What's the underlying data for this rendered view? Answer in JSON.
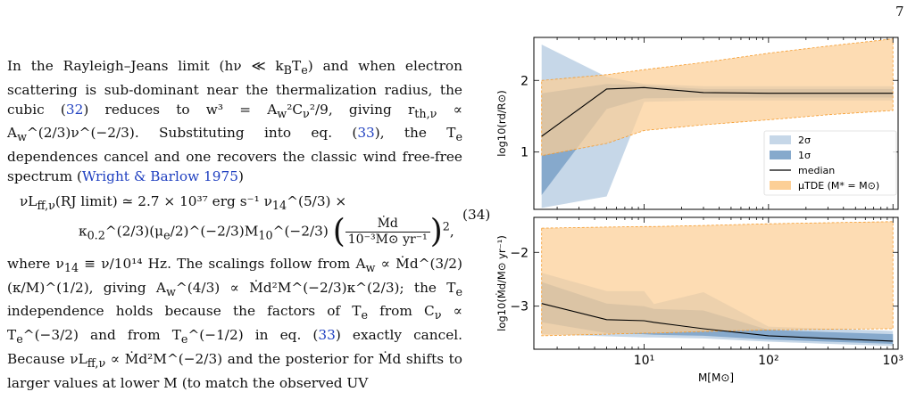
{
  "page_number": "7",
  "para1": {
    "a": "In the Rayleigh–Jeans limit (hν ≪ k",
    "a_sub": "B",
    "b": "T",
    "b_sub": "e",
    "c": ") and when electron scattering is sub-dominant near the thermalization radius, the cubic (",
    "ref_32": "32",
    "d": ") reduces to w³ = A",
    "d_sub": "w",
    "e": "²C",
    "e_sub": "ν",
    "f": "²/9, giving r",
    "f_sub": "th,ν",
    "g": " ∝ A",
    "g_sub": "w",
    "h": "^(2/3)ν^(−2/3). Substituting into eq. (",
    "ref_33": "33",
    "i": "), the T",
    "i_sub": "e",
    "j": " dependences cancel and one recovers the classic wind free-free spectrum (",
    "cite": "Wright & Barlow 1975",
    "k": ")"
  },
  "equation": {
    "row1_left": "νL",
    "row1_sub": "ff,ν",
    "row1_mid": "(RJ limit) ≃ 2.7 × 10³⁷ erg s⁻¹ ν",
    "row1_nu_sub": "14",
    "row1_end": "^(5/3) ×",
    "row2_a": "κ",
    "row2_a_sub": "0.2",
    "row2_b": "^(2/3)(μ",
    "row2_b_sub": "e",
    "row2_c": "/2)^(−2/3)M",
    "row2_c_sub": "10",
    "row2_d": "^(−2/3)",
    "frac_num": "Ṁd",
    "frac_den": "10⁻³M⊙ yr⁻¹",
    "power": "2",
    "tail": ",",
    "number": "(34)"
  },
  "para2": {
    "a": "where ν",
    "a_sub": "14",
    "b": " ≡ ν/10¹⁴ Hz. The scalings follow from A",
    "b_sub": "w",
    "c": " ∝ Ṁd^(3/2)(κ/M)^(1/2), giving A",
    "c_sub": "w",
    "d": "^(4/3) ∝ Ṁd²M^(−2/3)κ^(2/3); the T",
    "d_sub": "e",
    "e": " independence holds because the factors of T",
    "e_sub": "e",
    "f": " from C",
    "f_sub": "ν",
    "g": " ∝ T",
    "g_sub": "e",
    "h": "^(−3/2) and from T",
    "h_sub": "e",
    "i": "^(−1/2) in eq. (",
    "ref_33": "33",
    "j": ") exactly cancel. Because νL",
    "j_sub": "ff,ν",
    "k": " ∝ Ṁd²M^(−2/3) and the posterior for Ṁd shifts to larger values at lower M (to match the observed UV"
  },
  "chart_data": [
    {
      "type": "area",
      "panel": "top",
      "xlabel": "",
      "ylabel": "log10(rd/R⊙)",
      "xscale": "log",
      "xlim": [
        1.3,
        1100
      ],
      "ylim": [
        0.2,
        2.6
      ],
      "yticks": [
        "1",
        "2"
      ],
      "legend_position": "lower-right",
      "legend": [
        "2σ",
        "1σ",
        "median",
        "μTDE (M* = M⊙)"
      ],
      "x": [
        1.5,
        5,
        10,
        30,
        100,
        300,
        1000
      ],
      "series": [
        {
          "name": "2σ",
          "upper": [
            2.5,
            2.05,
            1.95,
            1.92,
            1.92,
            1.92,
            1.92
          ],
          "lower": [
            0.22,
            0.38,
            1.7,
            1.72,
            1.72,
            1.72,
            1.72
          ]
        },
        {
          "name": "1σ",
          "upper": [
            1.82,
            1.95,
            1.93,
            1.88,
            1.88,
            1.88,
            1.88
          ],
          "lower": [
            0.4,
            1.6,
            1.75,
            1.76,
            1.76,
            1.76,
            1.76
          ]
        },
        {
          "name": "median",
          "values": [
            1.22,
            1.88,
            1.9,
            1.83,
            1.82,
            1.82,
            1.82
          ]
        },
        {
          "name": "μTDE (M* = M⊙)",
          "upper": [
            2.0,
            2.08,
            2.15,
            2.25,
            2.38,
            2.48,
            2.58
          ],
          "lower": [
            0.95,
            1.12,
            1.3,
            1.38,
            1.45,
            1.52,
            1.58
          ]
        }
      ]
    },
    {
      "type": "area",
      "panel": "bottom",
      "xlabel": "M[M⊙]",
      "ylabel": "log10(Ṁd/M⊙ yr⁻¹)",
      "xscale": "log",
      "xlim": [
        1.3,
        1100
      ],
      "ylim": [
        -3.8,
        -1.35
      ],
      "yticks": [
        "−3",
        "−2"
      ],
      "xticks": [
        "10¹",
        "10²",
        "10³"
      ],
      "x": [
        1.5,
        5,
        10,
        12,
        30,
        100,
        300,
        1000
      ],
      "series": [
        {
          "name": "2σ",
          "upper": [
            -2.38,
            -2.72,
            -2.72,
            -2.96,
            -2.74,
            -3.38,
            -3.42,
            -3.46
          ],
          "lower": [
            -3.52,
            -3.56,
            -3.58,
            -3.58,
            -3.6,
            -3.66,
            -3.7,
            -3.74
          ]
        },
        {
          "name": "1σ",
          "upper": [
            -2.55,
            -2.95,
            -3.0,
            -3.05,
            -3.08,
            -3.44,
            -3.48,
            -3.52
          ],
          "lower": [
            -3.3,
            -3.5,
            -3.52,
            -3.53,
            -3.55,
            -3.62,
            -3.66,
            -3.7
          ]
        },
        {
          "name": "median",
          "values": [
            -2.95,
            -3.25,
            -3.27,
            -3.3,
            -3.42,
            -3.55,
            -3.6,
            -3.65
          ]
        },
        {
          "name": "μTDE (M* = M⊙)",
          "upper": [
            -1.55,
            -1.53,
            -1.52,
            -1.52,
            -1.5,
            -1.47,
            -1.45,
            -1.43
          ],
          "lower": [
            -3.55,
            -3.52,
            -3.5,
            -3.5,
            -3.47,
            -3.44,
            -3.43,
            -3.42
          ]
        }
      ]
    }
  ],
  "colors": {
    "sigma2": "#c6d7e8",
    "sigma1": "#86a9cc",
    "median": "#000000",
    "tde_fill": "#fccf96",
    "tde_edge": "#f59a2a"
  }
}
